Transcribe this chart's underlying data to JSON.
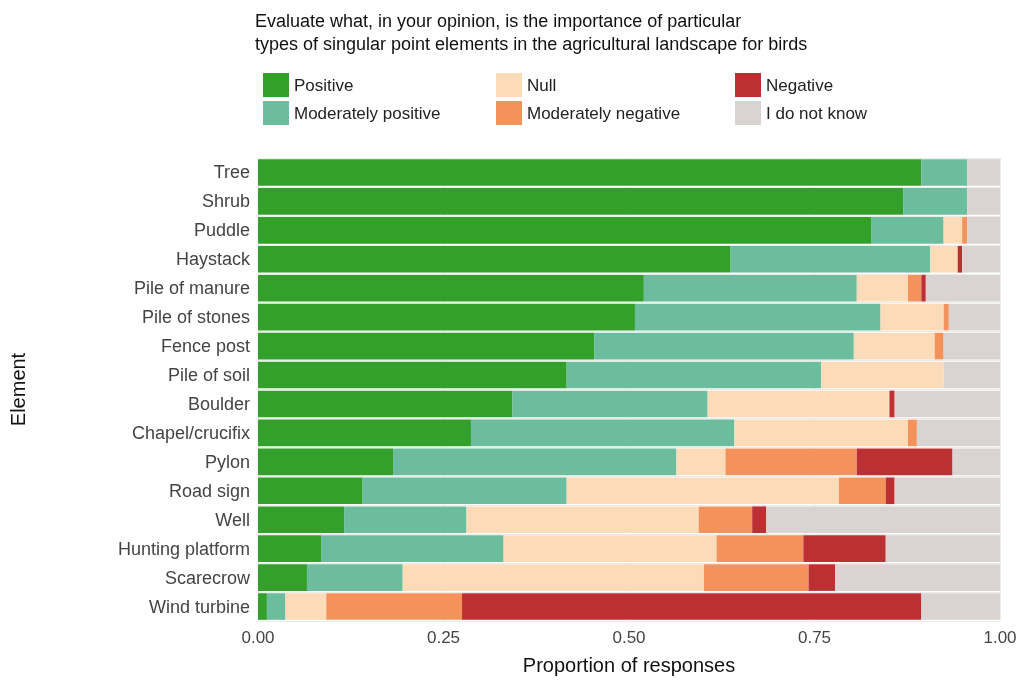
{
  "chart_data": {
    "type": "bar",
    "orientation": "horizontal",
    "stacked": true,
    "title": "Evaluate what, in your opinion, is the importance of particular\ntypes of singular point elements in the agricultural landscape for birds",
    "xlabel": "Proportion of responses",
    "ylabel": "Element",
    "categories": [
      "Tree",
      "Shrub",
      "Puddle",
      "Haystack",
      "Pile of manure",
      "Pile of stones",
      "Fence post",
      "Pile of soil",
      "Boulder",
      "Chapel/crucifix",
      "Pylon",
      "Road sign",
      "Well",
      "Hunting platform",
      "Scarecrow",
      "Wind turbine"
    ],
    "series": [
      {
        "name": "Positive",
        "color": "#33a02c",
        "values": [
          0.894,
          0.87,
          0.827,
          0.637,
          0.52,
          0.508,
          0.453,
          0.416,
          0.343,
          0.287,
          0.182,
          0.141,
          0.116,
          0.085,
          0.066,
          0.012
        ]
      },
      {
        "name": "Moderately positive",
        "color": "#6cbc9e",
        "values": [
          0.062,
          0.086,
          0.097,
          0.269,
          0.287,
          0.331,
          0.35,
          0.343,
          0.263,
          0.355,
          0.382,
          0.275,
          0.165,
          0.246,
          0.129,
          0.025
        ]
      },
      {
        "name": "Null",
        "color": "#fcdcb8",
        "values": [
          0,
          0,
          0.025,
          0.037,
          0.069,
          0.085,
          0.109,
          0.165,
          0.245,
          0.234,
          0.066,
          0.367,
          0.313,
          0.287,
          0.406,
          0.055
        ]
      },
      {
        "name": "Moderately negative",
        "color": "#f4925c",
        "values": [
          0,
          0,
          0.007,
          0,
          0.018,
          0.007,
          0.012,
          0,
          0,
          0.012,
          0.177,
          0.063,
          0.072,
          0.117,
          0.141,
          0.183
        ]
      },
      {
        "name": "Negative",
        "color": "#bc3033",
        "values": [
          0,
          0,
          0,
          0.006,
          0.006,
          0,
          0,
          0,
          0.007,
          0,
          0.129,
          0.012,
          0.019,
          0.111,
          0.036,
          0.619
        ]
      },
      {
        "name": "I do not know",
        "color": "#d9d3d2",
        "values": [
          0.044,
          0.044,
          0.044,
          0.051,
          0.1,
          0.069,
          0.076,
          0.076,
          0.142,
          0.112,
          0.064,
          0.142,
          0.315,
          0.154,
          0.222,
          0.106
        ]
      }
    ],
    "xlim": [
      0,
      1
    ],
    "xticks": [
      {
        "value": 0,
        "label": "0.00"
      },
      {
        "value": 0.25,
        "label": "0.25"
      },
      {
        "value": 0.5,
        "label": "0.50"
      },
      {
        "value": 0.75,
        "label": "0.75"
      },
      {
        "value": 1,
        "label": "1.00"
      }
    ],
    "grid": true,
    "legend": "top"
  }
}
